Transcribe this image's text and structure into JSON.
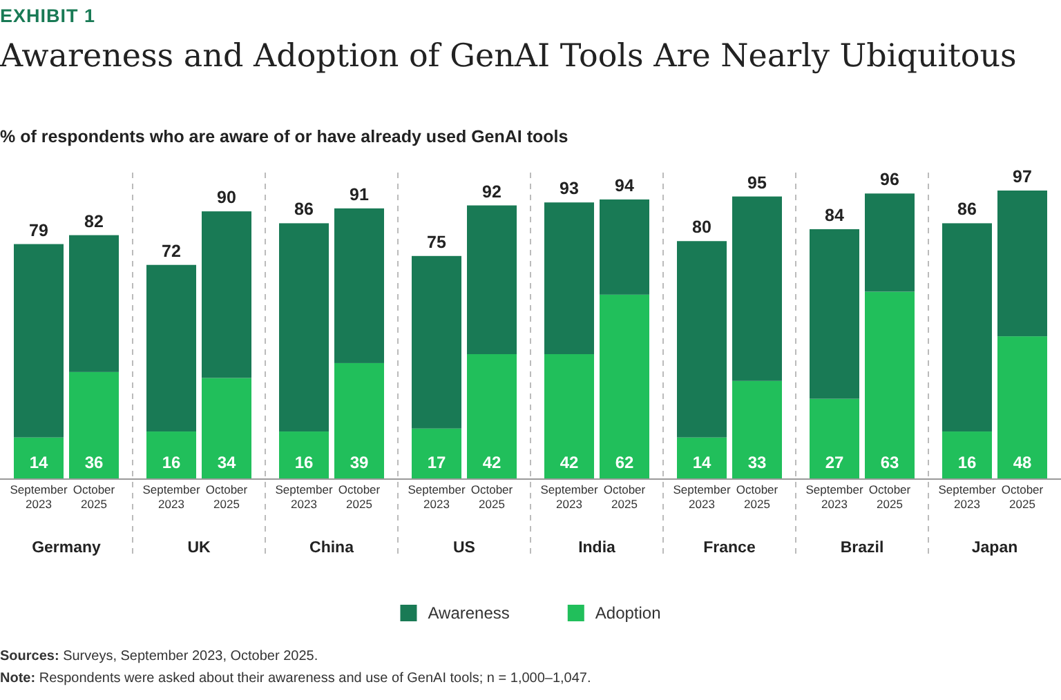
{
  "chart_data": [
    {
      "type": "bar",
      "title": "Awareness and Adoption of GenAI Tools Are Nearly Ubiquitous",
      "subtitle": "% of respondents who are aware of or have already used GenAI tools",
      "annotations": [
        "EXHIBIT 1",
        "Sources: Surveys, September 2023, October 2025.",
        "Note: Respondents were asked about their awareness and use of GenAI tools; n = 1,000–1,047."
      ],
      "xlabel": "Germany",
      "categories": [
        "September 2023",
        "October 2025"
      ],
      "stacked": true,
      "legend": "bottom",
      "series": [
        {
          "name": "Adoption",
          "color": "#21bf5b",
          "values": [
            14,
            36
          ],
          "value_labels": [
            "14",
            "36"
          ]
        },
        {
          "name": "Awareness",
          "color": "#197a55",
          "values": [
            65,
            46
          ]
        }
      ],
      "totals": [
        "79",
        "82"
      ]
    },
    {
      "type": "bar",
      "xlabel": "UK",
      "categories": [
        "September 2023",
        "October 2025"
      ],
      "stacked": true,
      "series": [
        {
          "color": "#21bf5b",
          "values": [
            16,
            34
          ],
          "value_labels": [
            "16",
            "34"
          ]
        },
        {
          "color": "#197a55",
          "values": [
            56,
            56
          ]
        }
      ],
      "totals": [
        "72",
        "90"
      ]
    },
    {
      "type": "bar",
      "xlabel": "China",
      "categories": [
        "September 2023",
        "October 2025"
      ],
      "stacked": true,
      "series": [
        {
          "color": "#21bf5b",
          "values": [
            16,
            39
          ],
          "value_labels": [
            "16",
            "39"
          ]
        },
        {
          "color": "#197a55",
          "values": [
            70,
            52
          ]
        }
      ],
      "totals": [
        "86",
        "91"
      ]
    },
    {
      "type": "bar",
      "xlabel": "US",
      "categories": [
        "September 2023",
        "October 2025"
      ],
      "stacked": true,
      "series": [
        {
          "color": "#21bf5b",
          "values": [
            17,
            42
          ],
          "value_labels": [
            "17",
            "42"
          ]
        },
        {
          "color": "#197a55",
          "values": [
            58,
            50
          ]
        }
      ],
      "totals": [
        "75",
        "92"
      ]
    },
    {
      "type": "bar",
      "xlabel": "India",
      "categories": [
        "September 2023",
        "October 2025"
      ],
      "stacked": true,
      "series": [
        {
          "color": "#21bf5b",
          "values": [
            42,
            62
          ],
          "value_labels": [
            "42",
            "62"
          ]
        },
        {
          "color": "#197a55",
          "values": [
            51,
            32
          ]
        }
      ],
      "totals": [
        "93",
        "94"
      ]
    },
    {
      "type": "bar",
      "xlabel": "France",
      "categories": [
        "September 2023",
        "October 2025"
      ],
      "stacked": true,
      "series": [
        {
          "color": "#21bf5b",
          "values": [
            14,
            33
          ],
          "value_labels": [
            "14",
            "33"
          ]
        },
        {
          "color": "#197a55",
          "values": [
            66,
            62
          ]
        }
      ],
      "totals": [
        "80",
        "95"
      ]
    },
    {
      "type": "bar",
      "xlabel": "Brazil",
      "categories": [
        "September 2023",
        "October 2025"
      ],
      "stacked": true,
      "series": [
        {
          "color": "#21bf5b",
          "values": [
            27,
            63
          ],
          "value_labels": [
            "27",
            "63"
          ]
        },
        {
          "color": "#197a55",
          "values": [
            57,
            33
          ]
        }
      ],
      "totals": [
        "84",
        "96"
      ]
    },
    {
      "type": "bar",
      "xlabel": "Japan",
      "categories": [
        "September 2023",
        "October 2025"
      ],
      "stacked": true,
      "series": [
        {
          "color": "#21bf5b",
          "values": [
            16,
            48
          ],
          "value_labels": [
            "16",
            "48"
          ]
        },
        {
          "color": "#197a55",
          "values": [
            70,
            49
          ]
        }
      ],
      "totals": [
        "86",
        "97"
      ]
    }
  ]
}
